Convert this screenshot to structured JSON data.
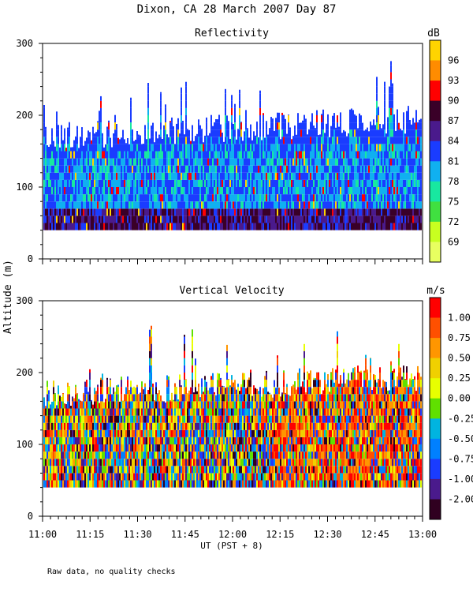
{
  "title": "Dixon, CA 28 March 2007  Day  87",
  "footnote": "Raw data, no quality checks",
  "chart_data": [
    {
      "type": "heatmap",
      "title": "Reflectivity",
      "ylabel": "Altitude (m)",
      "xlabel": "UT  (PST + 8)",
      "ylim": [
        0,
        300
      ],
      "yticks": [
        "0",
        "100",
        "200",
        "300"
      ],
      "xticks": [
        "11:00",
        "11:15",
        "11:30",
        "11:45",
        "12:00",
        "12:15",
        "12:30",
        "12:45",
        "13:00"
      ],
      "x_range_minutes": [
        0,
        120
      ],
      "data_altitude_range": [
        40,
        280
      ],
      "colorbar": {
        "unit": "dB",
        "labels": [
          "96",
          "93",
          "90",
          "87",
          "84",
          "81",
          "78",
          "75",
          "72",
          "69"
        ],
        "colors": [
          "#ffd400",
          "#ff8c00",
          "#ff0000",
          "#3a0028",
          "#4a1a8c",
          "#1a3cff",
          "#10b0f0",
          "#18e8a0",
          "#40e040",
          "#c8ff20",
          "#e8ff60"
        ]
      }
    },
    {
      "type": "heatmap",
      "title": "Vertical Velocity",
      "ylabel": "Altitude (m)",
      "xlabel": "UT  (PST + 8)",
      "ylim": [
        0,
        300
      ],
      "yticks": [
        "0",
        "100",
        "200",
        "300"
      ],
      "xticks": [
        "11:00",
        "11:15",
        "11:30",
        "11:45",
        "12:00",
        "12:15",
        "12:30",
        "12:45",
        "13:00"
      ],
      "x_range_minutes": [
        0,
        120
      ],
      "data_altitude_range": [
        40,
        280
      ],
      "colorbar": {
        "unit": "m/s",
        "labels": [
          "1.00",
          "0.75",
          "0.50",
          "0.25",
          "0.00",
          "-0.25",
          "-0.50",
          "-0.75",
          "-1.00",
          "-2.00"
        ],
        "colors": [
          "#ff0000",
          "#ff5000",
          "#ff9600",
          "#f0d000",
          "#e8ff00",
          "#60e000",
          "#00b4e0",
          "#0080ff",
          "#1a3cff",
          "#4a1a8c",
          "#300020"
        ]
      }
    }
  ]
}
